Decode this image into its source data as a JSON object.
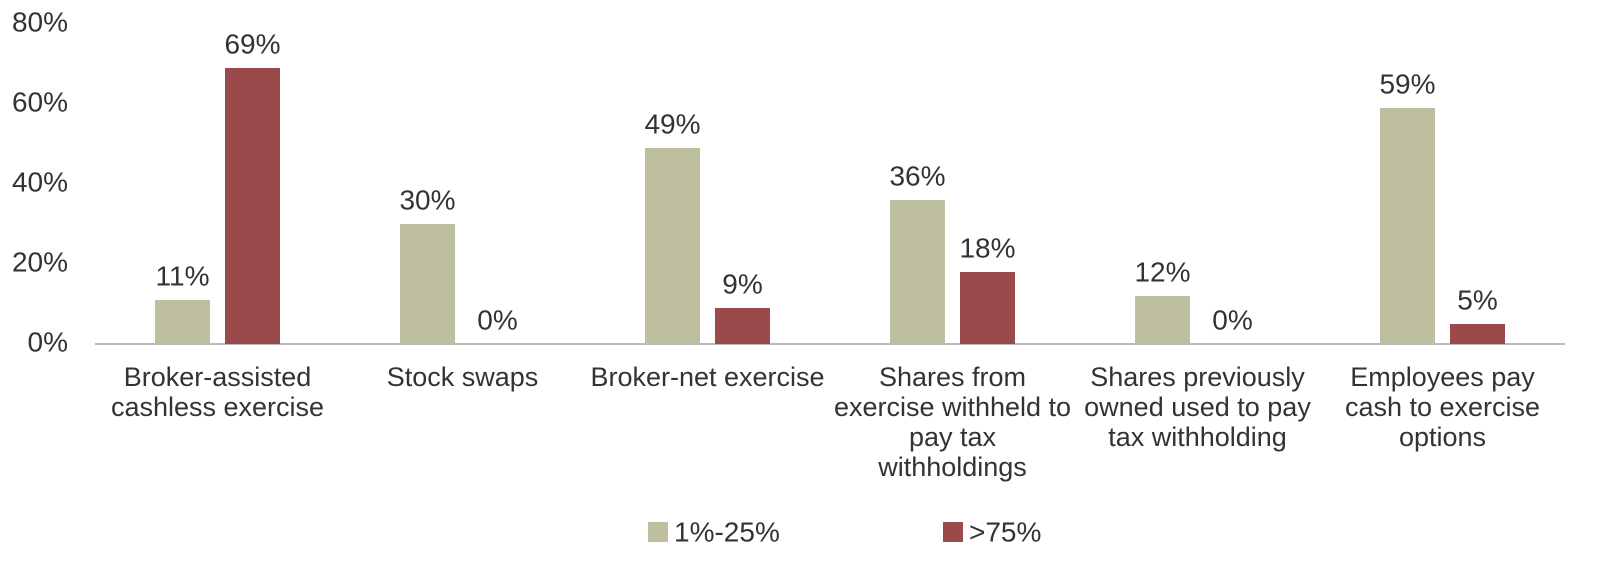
{
  "chart_data": {
    "type": "bar",
    "categories": [
      "Broker-assisted cashless exercise",
      "Stock swaps",
      "Broker-net exercise",
      "Shares from exercise withheld to pay tax withholdings",
      "Shares previously owned used to pay tax withholding",
      "Employees pay cash to exercise options"
    ],
    "series": [
      {
        "name": "1%-25%",
        "color": "#bdbf9f",
        "values": [
          11,
          30,
          49,
          36,
          12,
          59
        ],
        "value_labels": [
          "11%",
          "30%",
          "49%",
          "36%",
          "12%",
          "59%"
        ]
      },
      {
        "name": ">75%",
        "color": "#9b4a4c",
        "values": [
          69,
          0,
          9,
          18,
          0,
          5
        ],
        "value_labels": [
          "69%",
          "0%",
          "9%",
          "18%",
          "0%",
          "5%"
        ]
      }
    ],
    "ylim": [
      0,
      80
    ],
    "yticks": [
      {
        "value": 0,
        "label": "0%"
      },
      {
        "value": 20,
        "label": "20%"
      },
      {
        "value": 40,
        "label": "40%"
      },
      {
        "value": 60,
        "label": "60%"
      },
      {
        "value": 80,
        "label": "80%"
      }
    ],
    "grid": false,
    "legend": "bottom"
  }
}
